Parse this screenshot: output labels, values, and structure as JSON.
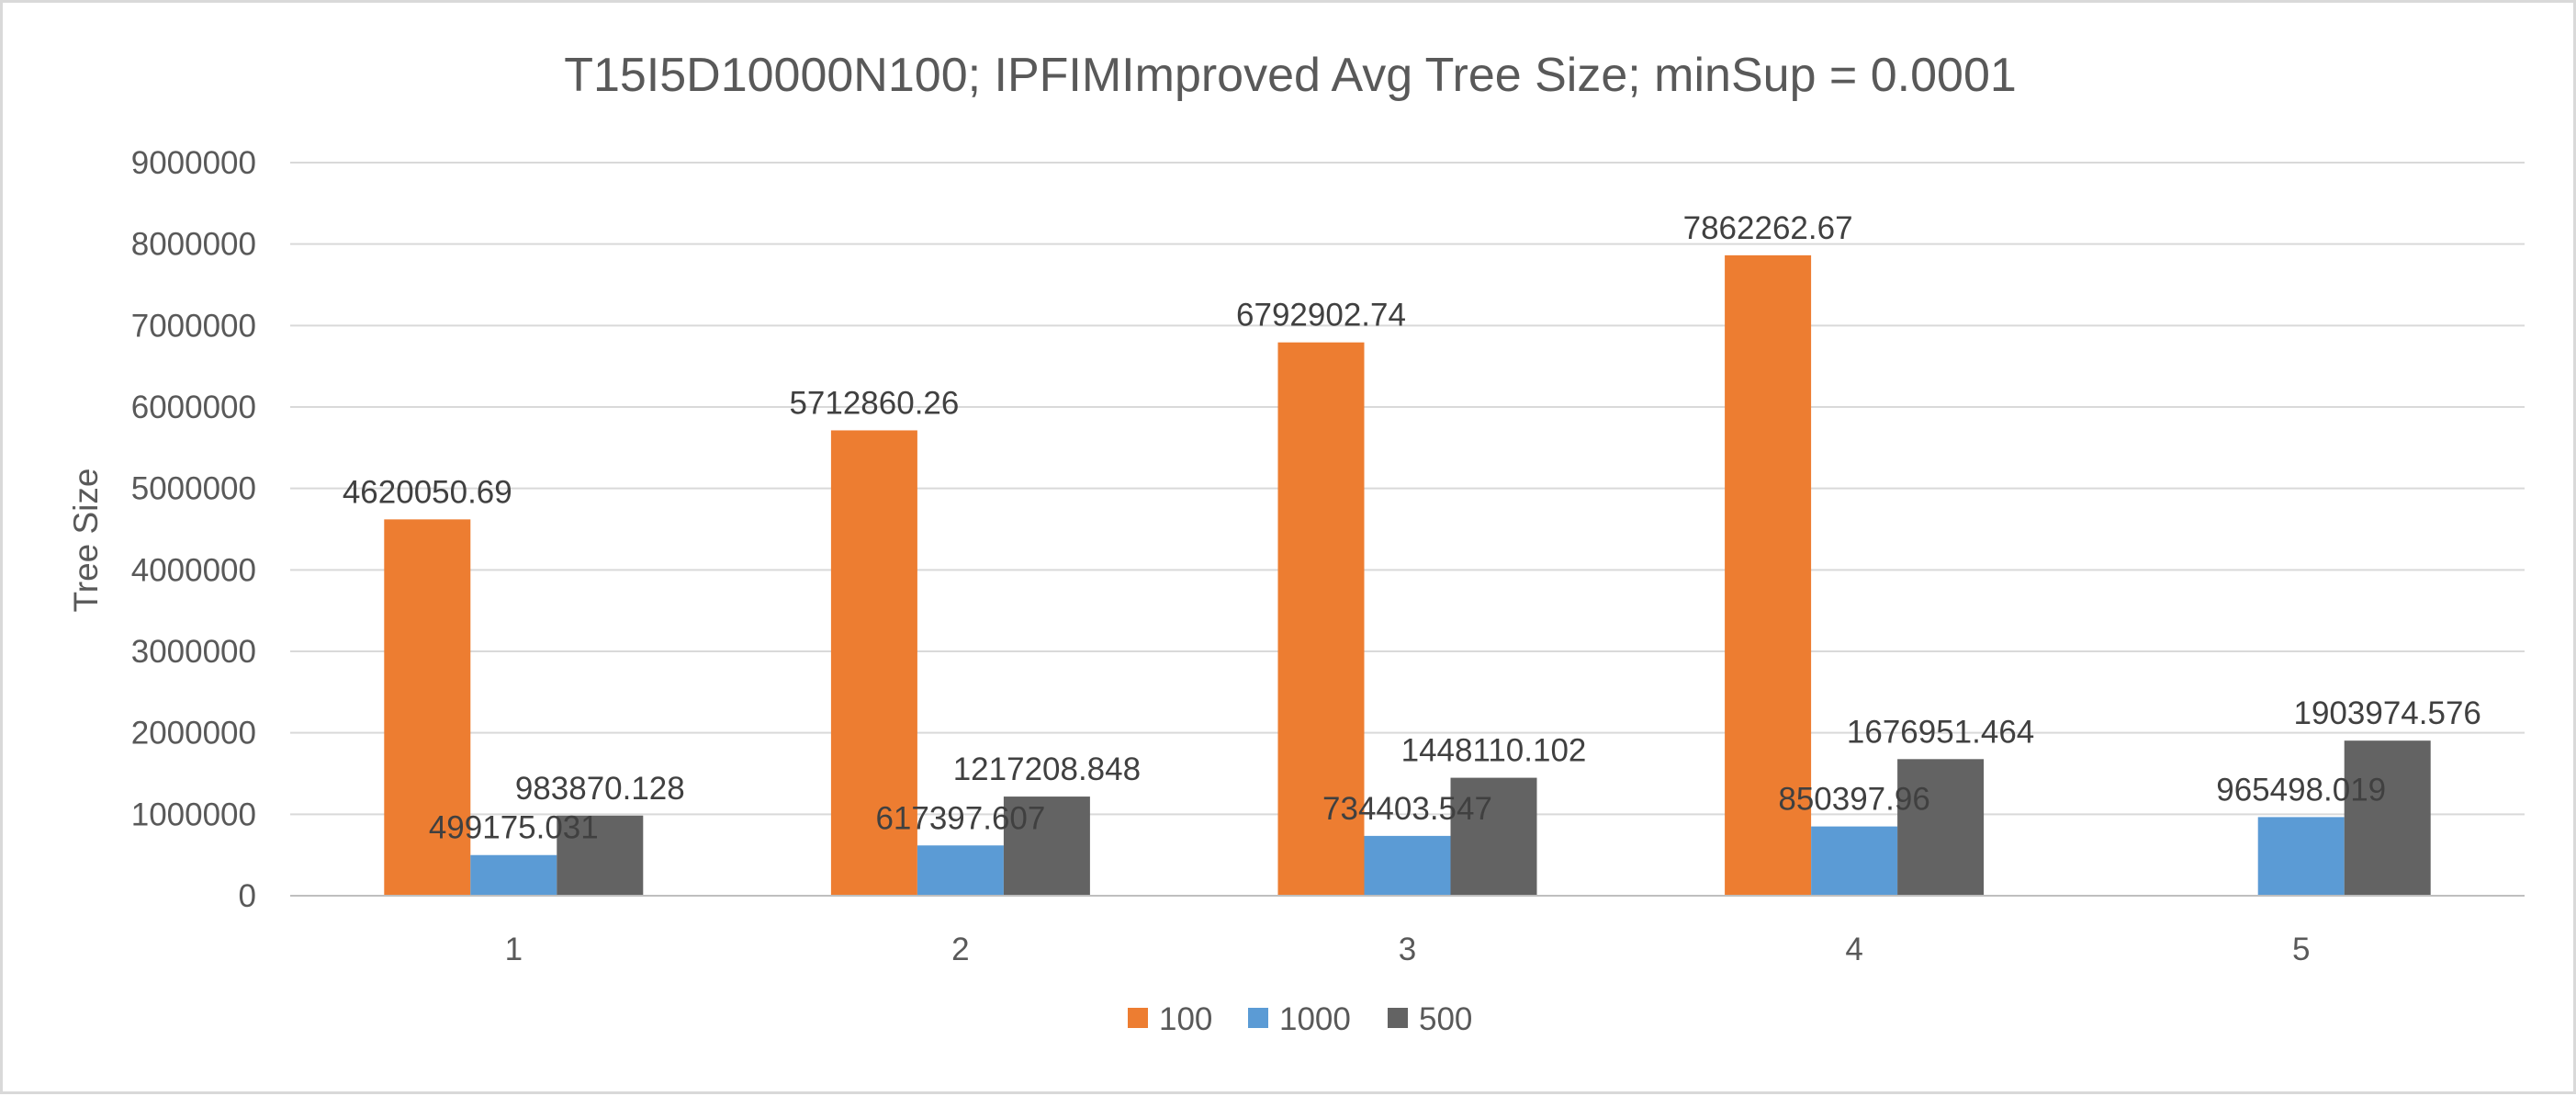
{
  "chart_data": {
    "type": "bar",
    "title": "T15I5D10000N100; IPFIMImproved Avg Tree Size; minSup = 0.0001",
    "xlabel": "",
    "ylabel": "Tree Size",
    "categories": [
      "1",
      "2",
      "3",
      "4",
      "5"
    ],
    "ylim": [
      0,
      9000000
    ],
    "yticks": [
      "0",
      "1000000",
      "2000000",
      "3000000",
      "4000000",
      "5000000",
      "6000000",
      "7000000",
      "8000000",
      "9000000"
    ],
    "grid": true,
    "legend_position": "bottom",
    "series": [
      {
        "name": "100",
        "color": "#ED7D31",
        "values": [
          4620050.69,
          5712860.26,
          6792902.74,
          7862262.67,
          null
        ],
        "labels": [
          "4620050.69",
          "5712860.26",
          "6792902.74",
          "7862262.67",
          ""
        ]
      },
      {
        "name": "1000",
        "color": "#5B9BD5",
        "values": [
          499175.031,
          617397.607,
          734403.547,
          850397.96,
          965498.019
        ],
        "labels": [
          "499175.031",
          "617397.607",
          "734403.547",
          "850397.96",
          "965498.019"
        ]
      },
      {
        "name": "500",
        "color": "#636363",
        "values": [
          983870.128,
          1217208.848,
          1448110.102,
          1676951.464,
          1903974.576
        ],
        "labels": [
          "983870.128",
          "1217208.848",
          "1448110.102",
          "1676951.464",
          "1903974.576"
        ]
      }
    ]
  }
}
